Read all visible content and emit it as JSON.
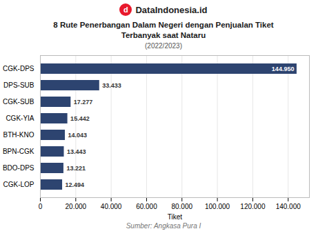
{
  "chart_data": {
    "type": "bar",
    "orientation": "horizontal",
    "brand": "DataIndonesia.id",
    "logo_text": "d",
    "title": "8 Rute Penerbangan Dalam Negeri dengan Penjualan Tiket\nTerbanyak saat Nataru",
    "subtitle": "(2022/2023)",
    "source": "Sumber: Angkasa Pura I",
    "xlabel": "Tiket",
    "categories": [
      "CGK-LOP",
      "BDO-DPS",
      "BPN-CGK",
      "BTH-KNO",
      "CGK-YIA",
      "CGK-SUB",
      "DPS-SUB",
      "CGK-DPS"
    ],
    "values": [
      12494,
      13221,
      13443,
      14043,
      15442,
      17277,
      33433,
      144950
    ],
    "value_labels": [
      "12.494",
      "13.221",
      "13.443",
      "14.043",
      "15.442",
      "17.277",
      "33.433",
      "144.950"
    ],
    "data_labels": true,
    "color": "#2d4470",
    "xlim": [
      0,
      152000
    ],
    "xticks": [
      0,
      {
        "value": 20000,
        "label": "20.000"
      },
      {
        "value": 40000,
        "label": "40.000"
      },
      {
        "value": 60000,
        "label": "60.000"
      },
      {
        "value": 80000,
        "label": "80.000"
      },
      {
        "value": 100000,
        "label": "100.000"
      },
      {
        "value": 120000,
        "label": "120.000"
      },
      {
        "value": 140000,
        "label": "140.000"
      }
    ],
    "grid": true
  }
}
